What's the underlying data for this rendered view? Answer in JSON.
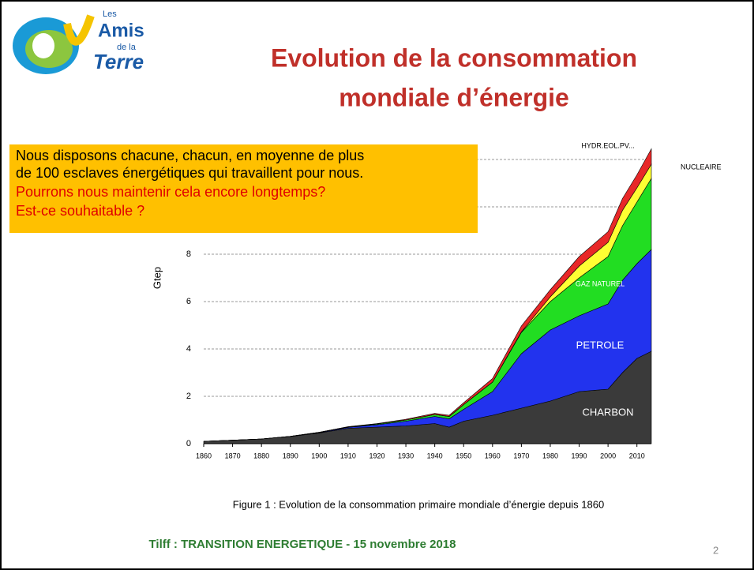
{
  "logo": {
    "les": "Les",
    "amis": "Amis",
    "dela": "de la",
    "terre": "Terre"
  },
  "slide": {
    "title_line1": "Evolution de la consommation",
    "title_line2": "mondiale d’énergie",
    "box": [
      "Nous disposons chacune, chacun, en moyenne de plus",
      "de 100 esclaves énergétiques qui travaillent pour nous.",
      "Pourrons nous maintenir cela encore longtemps?",
      "Est-ce souhaitable ?"
    ],
    "caption": "Figure 1 : Evolution de la consommation primaire mondiale d’énergie depuis 1860",
    "footer": "Tilff :  TRANSITION ENERGETIQUE - 15 novembre 2018",
    "page": "2"
  },
  "chart_data": {
    "type": "stacked_area",
    "y_label": "Gtep",
    "x": [
      1860,
      1870,
      1880,
      1890,
      1900,
      1910,
      1920,
      1930,
      1940,
      1945,
      1950,
      1960,
      1970,
      1980,
      1990,
      2000,
      2005,
      2010,
      2015
    ],
    "series": [
      {
        "name": "CHARBON",
        "color": "#3a3a3a",
        "values": [
          0.1,
          0.15,
          0.2,
          0.3,
          0.45,
          0.65,
          0.7,
          0.75,
          0.85,
          0.7,
          0.95,
          1.2,
          1.5,
          1.8,
          2.2,
          2.3,
          3.0,
          3.6,
          3.9
        ]
      },
      {
        "name": "PETROLE",
        "color": "#2233ee",
        "values": [
          0,
          0,
          0,
          0.01,
          0.02,
          0.04,
          0.1,
          0.2,
          0.3,
          0.35,
          0.5,
          1.0,
          2.3,
          3.0,
          3.2,
          3.6,
          3.9,
          4.0,
          4.3
        ]
      },
      {
        "name": "GAZ NATUREL",
        "color": "#22dd22",
        "values": [
          0,
          0,
          0,
          0,
          0.01,
          0.02,
          0.03,
          0.05,
          0.08,
          0.1,
          0.2,
          0.4,
          0.9,
          1.2,
          1.6,
          2.0,
          2.3,
          2.6,
          3.0
        ]
      },
      {
        "name": "NUCLEAIRE",
        "color": "#ffff33",
        "values": [
          0,
          0,
          0,
          0,
          0,
          0,
          0,
          0,
          0,
          0,
          0,
          0,
          0.02,
          0.2,
          0.5,
          0.6,
          0.65,
          0.6,
          0.6
        ]
      },
      {
        "name": "HYDR.EOL.PV...",
        "color": "#e82828",
        "values": [
          0,
          0,
          0,
          0,
          0,
          0.01,
          0.02,
          0.03,
          0.05,
          0.05,
          0.08,
          0.15,
          0.25,
          0.3,
          0.4,
          0.45,
          0.5,
          0.55,
          0.65
        ]
      }
    ],
    "xlim": [
      1860,
      2015
    ],
    "xticks": [
      1860,
      1870,
      1880,
      1890,
      1900,
      1910,
      1920,
      1930,
      1940,
      1950,
      1960,
      1970,
      1980,
      1990,
      2000,
      2010
    ],
    "ylim": [
      0,
      13
    ],
    "yticks": [
      0,
      2,
      4,
      6,
      8,
      10,
      12
    ],
    "grid": true
  }
}
